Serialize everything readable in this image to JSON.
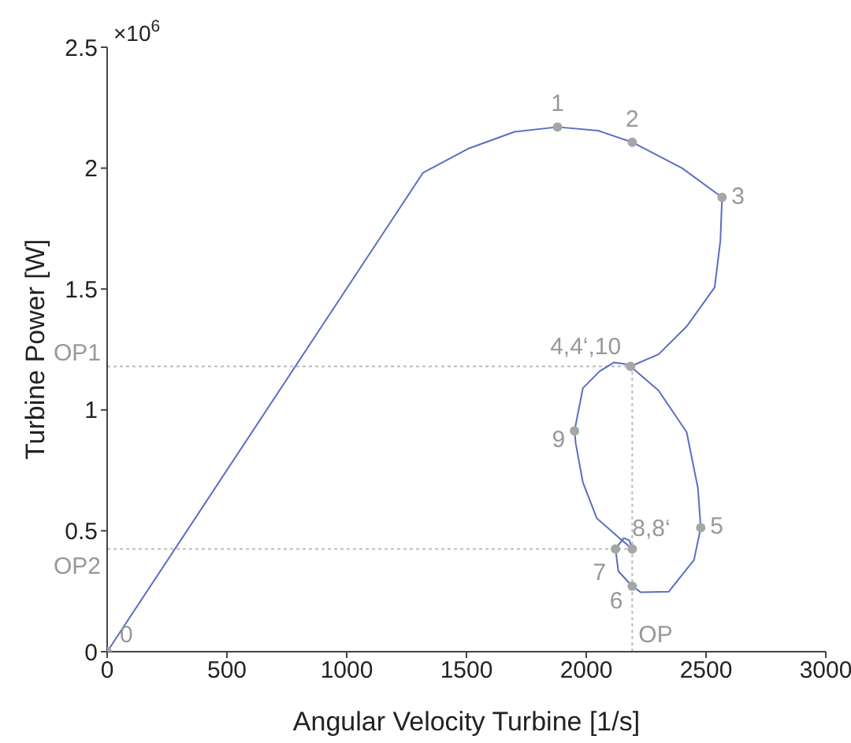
{
  "chart_data": {
    "type": "line",
    "xlabel": "Angular Velocity Turbine [1/s]",
    "ylabel": "Turbine Power [W]",
    "xlim": [
      0,
      3000
    ],
    "xticks": [
      0,
      500,
      1000,
      1500,
      2000,
      2500,
      3000
    ],
    "ylim": [
      0,
      2.5
    ],
    "yticks": [
      0,
      0.5,
      1,
      1.5,
      2,
      2.5
    ],
    "marker": "none",
    "line_style": "solid",
    "series": [
      {
        "type": "line",
        "color": "#5a6fc0",
        "x": [
          0,
          1318,
          1506,
          1700,
          1880,
          2050,
          2192,
          2400,
          2567,
          2560,
          2536,
          2419,
          2302,
          2185,
          2302,
          2419,
          2466,
          2478,
          2450,
          2344,
          2227,
          2192,
          2134,
          2122,
          2157,
          2180,
          2192,
          2138,
          2044,
          1986,
          1956,
          1951,
          1986,
          2056,
          2115,
          2162,
          2185
        ],
        "values": [
          0,
          1.98,
          2.08,
          2.15,
          2.17,
          2.155,
          2.107,
          2.0,
          1.879,
          1.7,
          1.507,
          1.345,
          1.23,
          1.18,
          1.08,
          0.908,
          0.678,
          0.513,
          0.38,
          0.248,
          0.246,
          0.271,
          0.333,
          0.425,
          0.47,
          0.46,
          0.425,
          0.47,
          0.552,
          0.7,
          0.862,
          0.913,
          1.09,
          1.16,
          1.196,
          1.19,
          1.18
        ]
      },
      {
        "type": "scatter",
        "color": "#a6a6a6",
        "marker": "circle",
        "x": [
          0,
          1880,
          2192,
          2567,
          2185,
          2478,
          2192,
          2122,
          2192,
          1951
        ],
        "values": [
          0,
          2.17,
          2.107,
          1.879,
          1.18,
          0.513,
          0.271,
          0.425,
          0.425,
          0.913
        ]
      }
    ],
    "ref_lines": [
      {
        "axis": "y",
        "value": 1.18,
        "label": "OP1",
        "color": "#bbbbbb",
        "line_style": "dotted"
      },
      {
        "axis": "y",
        "value": 0.425,
        "label": "OP2",
        "color": "#bbbbbb",
        "line_style": "dotted"
      },
      {
        "axis": "x",
        "value": 2192,
        "label": "OP",
        "color": "#bbbbbb",
        "line_style": "dotted"
      }
    ],
    "annotations": [
      "×10$^{6}$",
      {
        "text": "0",
        "x": 0,
        "y": 0
      },
      {
        "text": "1",
        "x": 1880,
        "y": 2.17
      },
      {
        "text": "2",
        "x": 2192,
        "y": 2.107
      },
      {
        "text": "3",
        "x": 2567,
        "y": 1.879
      },
      {
        "text": "4,4‘,10",
        "x": 2185,
        "y": 1.18
      },
      {
        "text": "5",
        "x": 2478,
        "y": 0.513
      },
      {
        "text": "6",
        "x": 2192,
        "y": 0.271
      },
      {
        "text": "7",
        "x": 2122,
        "y": 0.425
      },
      {
        "text": "8,8‘",
        "x": 2192,
        "y": 0.425
      },
      {
        "text": "9",
        "x": 1951,
        "y": 0.913
      }
    ]
  }
}
